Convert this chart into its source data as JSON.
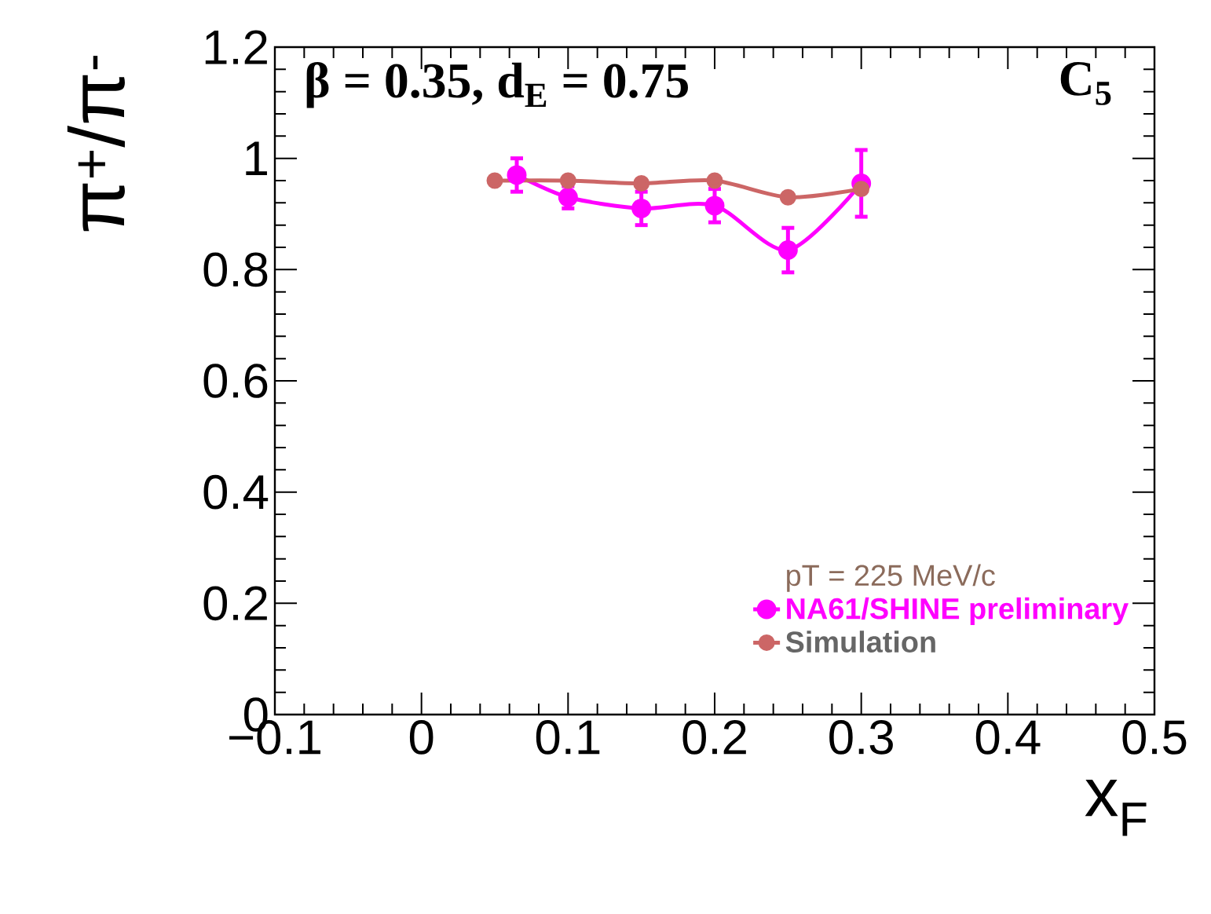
{
  "chart_data": {
    "type": "line",
    "xlabel": "x$_{F}$",
    "ylabel": "π$^{+}$/π$^{-}$",
    "legend_title": "pT = 225 MeV/c",
    "annotations": [
      "β = 0.35, d$_{E}$ = 0.75",
      "C$_{5}$"
    ],
    "series": [
      {
        "name": "NA61/SHINE preliminary",
        "color": "#ff00ff",
        "marker": "circle",
        "x": [
          0.065,
          0.1,
          0.15,
          0.2,
          0.25,
          0.3
        ],
        "values": [
          0.97,
          0.93,
          0.91,
          0.915,
          0.835,
          0.955
        ],
        "errors": [
          0.03,
          0.02,
          0.03,
          0.03,
          0.04,
          0.06
        ]
      },
      {
        "name": "Simulation",
        "color": "#cc6666",
        "marker": "circle",
        "x": [
          0.05,
          0.1,
          0.15,
          0.2,
          0.25,
          0.3
        ],
        "values": [
          0.96,
          0.96,
          0.955,
          0.96,
          0.93,
          0.945
        ]
      }
    ],
    "xlim": [
      -0.1,
      0.5
    ],
    "xticks": [
      {
        "value": -0.1,
        "label": "−0.1"
      },
      0,
      0.1,
      0.2,
      0.3,
      0.4,
      0.5
    ],
    "ylim": [
      0,
      1.2
    ],
    "yticks": [
      0,
      0.2,
      0.4,
      0.6,
      0.8,
      1,
      1.2
    ],
    "legend": "bottom right",
    "grid": false
  }
}
